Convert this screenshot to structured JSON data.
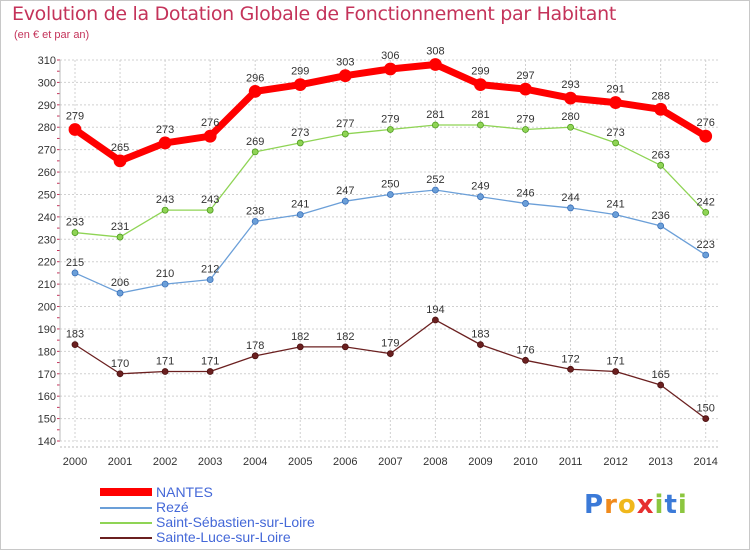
{
  "chart_data": {
    "type": "line",
    "title": "Evolution de la Dotation Globale de Fonctionnement par Habitant",
    "subtitle": "(en € et par an)",
    "x": [
      "2000",
      "2001",
      "2002",
      "2003",
      "2004",
      "2005",
      "2006",
      "2007",
      "2008",
      "2009",
      "2010",
      "2011",
      "2012",
      "2013",
      "2014"
    ],
    "ylim": [
      140,
      310
    ],
    "yticks": [
      140,
      150,
      160,
      170,
      180,
      190,
      200,
      210,
      220,
      230,
      240,
      250,
      260,
      270,
      280,
      290,
      300,
      310
    ],
    "grid": true,
    "legend_position": "bottom-left",
    "series": [
      {
        "name": "NANTES",
        "color": "#ff0000",
        "values": [
          279,
          265,
          273,
          276,
          296,
          299,
          303,
          306,
          308,
          299,
          297,
          293,
          291,
          288,
          276
        ]
      },
      {
        "name": "Rezé",
        "color": "#6b9fd8",
        "values": [
          215,
          206,
          210,
          212,
          238,
          241,
          247,
          250,
          252,
          249,
          246,
          244,
          241,
          236,
          223
        ]
      },
      {
        "name": "Saint-Sébastien-sur-Loire",
        "color": "#8fd455",
        "values": [
          233,
          231,
          243,
          243,
          269,
          273,
          277,
          279,
          281,
          281,
          279,
          280,
          273,
          263,
          242
        ]
      },
      {
        "name": "Sainte-Luce-sur-Loire",
        "color": "#6b2020",
        "values": [
          183,
          170,
          171,
          171,
          178,
          182,
          182,
          179,
          194,
          183,
          176,
          172,
          171,
          165,
          150
        ]
      }
    ]
  },
  "logo": {
    "letters": [
      "P",
      "r",
      "o",
      "x",
      "i",
      "t",
      "i"
    ],
    "colors": [
      "#3b7ad8",
      "#f08a1c",
      "#f0b81c",
      "#e63030",
      "#8cc63f",
      "#3b7ad8",
      "#8cc63f"
    ]
  }
}
